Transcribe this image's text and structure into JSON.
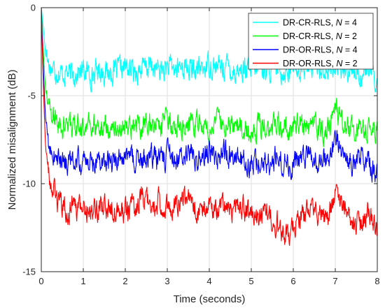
{
  "chart_data": {
    "type": "line",
    "xlabel": "Time (seconds)",
    "ylabel": "Normalized misalignment (dB)",
    "xlim": [
      0,
      8
    ],
    "ylim": [
      -15,
      0
    ],
    "xticks": [
      0,
      1,
      2,
      3,
      4,
      5,
      6,
      7,
      8
    ],
    "yticks": [
      0,
      -5,
      -10,
      -15
    ],
    "grid": true,
    "legend_position": "top-right",
    "series": [
      {
        "name": "DR-CR-RLS, N = 4",
        "name_prefix": "DR-CR-RLS, ",
        "name_var": "N",
        "name_suffix": " = 4",
        "color": "#00ffff",
        "x": [
          0,
          0.02,
          0.05,
          0.08,
          0.1,
          0.15,
          0.2,
          0.3,
          0.4,
          0.5,
          0.6,
          0.7,
          0.8,
          1.0,
          1.2,
          1.4,
          1.6,
          1.8,
          2.0,
          2.2,
          2.4,
          2.6,
          2.8,
          3.0,
          3.2,
          3.4,
          3.6,
          3.8,
          4.0,
          4.2,
          4.4,
          4.6,
          4.8,
          5.0,
          5.2,
          5.4,
          5.6,
          5.8,
          6.0,
          6.2,
          6.4,
          6.6,
          6.8,
          7.0,
          7.2,
          7.4,
          7.6,
          7.8,
          8.0
        ],
        "y": [
          0,
          -0.5,
          -1.2,
          -2.0,
          -2.6,
          -3.0,
          -3.3,
          -3.5,
          -3.6,
          -3.8,
          -3.6,
          -3.9,
          -3.7,
          -3.6,
          -3.8,
          -3.5,
          -3.7,
          -3.6,
          -3.4,
          -3.6,
          -3.5,
          -3.3,
          -3.6,
          -3.4,
          -3.5,
          -3.3,
          -3.6,
          -3.5,
          -3.2,
          -3.4,
          -3.3,
          -3.6,
          -3.5,
          -3.7,
          -3.4,
          -3.5,
          -3.4,
          -3.6,
          -3.3,
          -3.5,
          -3.4,
          -3.2,
          -3.7,
          -3.3,
          -3.6,
          -3.4,
          -3.8,
          -3.5,
          -4.3
        ]
      },
      {
        "name": "DR-CR-RLS, N = 2",
        "name_prefix": "DR-CR-RLS, ",
        "name_var": "N",
        "name_suffix": " = 2",
        "color": "#00ff00",
        "x": [
          0,
          0.02,
          0.05,
          0.08,
          0.1,
          0.15,
          0.2,
          0.3,
          0.4,
          0.5,
          0.6,
          0.7,
          0.8,
          1.0,
          1.2,
          1.4,
          1.6,
          1.8,
          2.0,
          2.2,
          2.4,
          2.6,
          2.8,
          3.0,
          3.2,
          3.4,
          3.6,
          3.8,
          4.0,
          4.2,
          4.4,
          4.6,
          4.8,
          5.0,
          5.2,
          5.4,
          5.6,
          5.8,
          6.0,
          6.2,
          6.4,
          6.6,
          6.8,
          7.0,
          7.2,
          7.4,
          7.6,
          7.8,
          8.0
        ],
        "y": [
          0,
          -1.0,
          -2.5,
          -3.8,
          -4.6,
          -5.5,
          -6.0,
          -6.4,
          -6.5,
          -6.7,
          -6.8,
          -6.6,
          -6.9,
          -6.7,
          -6.8,
          -6.6,
          -6.7,
          -6.9,
          -6.6,
          -6.8,
          -6.7,
          -6.5,
          -6.8,
          -6.6,
          -6.7,
          -6.5,
          -6.8,
          -6.6,
          -6.9,
          -6.5,
          -6.7,
          -6.6,
          -6.8,
          -6.9,
          -6.7,
          -6.8,
          -6.6,
          -6.8,
          -6.9,
          -6.7,
          -6.8,
          -7.0,
          -6.9,
          -5.7,
          -6.6,
          -6.9,
          -6.8,
          -7.1,
          -6.8
        ]
      },
      {
        "name": "DR-OR-RLS, N = 4",
        "name_prefix": "DR-OR-RLS, ",
        "name_var": "N",
        "name_suffix": " = 4",
        "color": "#0000ff",
        "x": [
          0,
          0.02,
          0.05,
          0.08,
          0.1,
          0.15,
          0.2,
          0.3,
          0.4,
          0.5,
          0.6,
          0.7,
          0.8,
          1.0,
          1.2,
          1.4,
          1.6,
          1.8,
          2.0,
          2.2,
          2.4,
          2.6,
          2.8,
          3.0,
          3.2,
          3.4,
          3.6,
          3.8,
          4.0,
          4.2,
          4.4,
          4.6,
          4.8,
          5.0,
          5.2,
          5.4,
          5.6,
          5.8,
          6.0,
          6.2,
          6.4,
          6.6,
          6.8,
          7.0,
          7.2,
          7.4,
          7.6,
          7.8,
          8.0
        ],
        "y": [
          0,
          -1.5,
          -3.5,
          -5.2,
          -6.2,
          -7.3,
          -7.9,
          -8.4,
          -8.6,
          -8.8,
          -8.7,
          -8.9,
          -8.6,
          -8.8,
          -8.7,
          -8.5,
          -8.8,
          -8.6,
          -8.4,
          -8.7,
          -8.6,
          -8.5,
          -8.7,
          -8.4,
          -8.6,
          -8.5,
          -8.3,
          -8.6,
          -8.1,
          -8.5,
          -8.2,
          -8.6,
          -8.7,
          -8.9,
          -8.6,
          -8.8,
          -8.5,
          -8.7,
          -8.9,
          -8.6,
          -8.5,
          -8.8,
          -8.7,
          -7.5,
          -8.4,
          -8.8,
          -8.5,
          -8.7,
          -9.6
        ]
      },
      {
        "name": "DR-OR-RLS, N = 2",
        "name_prefix": "DR-OR-RLS, ",
        "name_var": "N",
        "name_suffix": " = 2",
        "color": "#ff0000",
        "x": [
          0,
          0.02,
          0.05,
          0.08,
          0.1,
          0.15,
          0.2,
          0.3,
          0.4,
          0.5,
          0.6,
          0.7,
          0.8,
          1.0,
          1.2,
          1.4,
          1.6,
          1.8,
          2.0,
          2.2,
          2.4,
          2.6,
          2.8,
          3.0,
          3.2,
          3.4,
          3.6,
          3.8,
          4.0,
          4.2,
          4.4,
          4.6,
          4.8,
          5.0,
          5.2,
          5.4,
          5.6,
          5.8,
          6.0,
          6.2,
          6.4,
          6.6,
          6.8,
          7.0,
          7.2,
          7.4,
          7.6,
          7.8,
          8.0
        ],
        "y": [
          0,
          -2.0,
          -4.5,
          -6.5,
          -7.8,
          -9.0,
          -9.8,
          -10.5,
          -11.0,
          -11.3,
          -11.8,
          -11.3,
          -11.6,
          -11.4,
          -11.7,
          -11.3,
          -11.5,
          -11.2,
          -11.6,
          -11.4,
          -10.9,
          -11.3,
          -11.0,
          -11.5,
          -11.2,
          -10.8,
          -11.3,
          -11.6,
          -11.2,
          -11.5,
          -11.3,
          -11.6,
          -11.4,
          -11.8,
          -12.0,
          -11.7,
          -12.2,
          -12.9,
          -12.4,
          -12.0,
          -11.6,
          -11.9,
          -12.2,
          -10.8,
          -11.4,
          -12.0,
          -12.3,
          -11.6,
          -12.6
        ]
      }
    ]
  }
}
